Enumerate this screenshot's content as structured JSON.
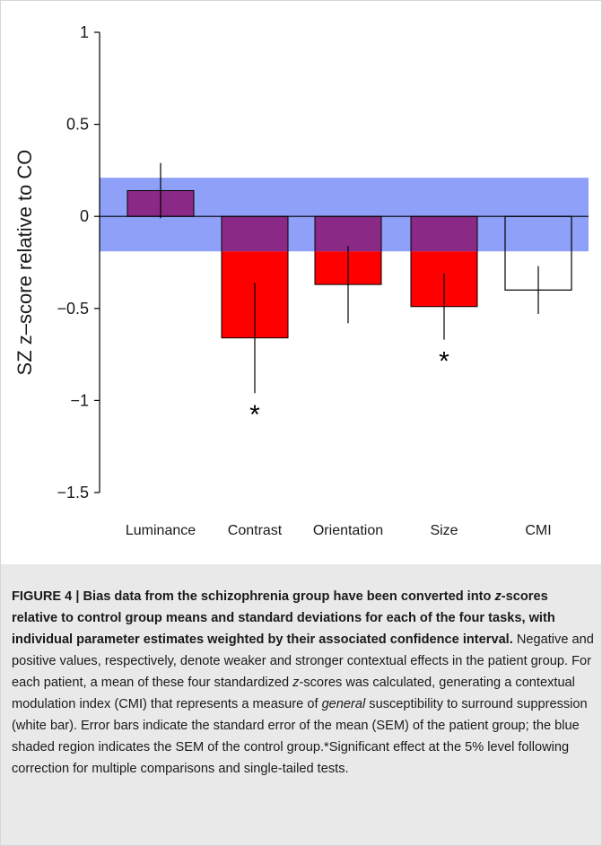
{
  "chart_data": {
    "type": "bar",
    "ylabel": "SZ z–score relative to CO",
    "ylim": [
      -1.5,
      1
    ],
    "yticks": [
      1,
      0.5,
      0,
      -0.5,
      -1,
      -1.5
    ],
    "ytick_labels": [
      "1",
      "0.5",
      "0",
      "−0.5",
      "−1",
      "−1.5"
    ],
    "categories": [
      "Luminance",
      "Contrast",
      "Orientation",
      "Size",
      "CMI"
    ],
    "values": [
      0.14,
      -0.66,
      -0.37,
      -0.49,
      -0.4
    ],
    "error": [
      0.15,
      0.3,
      0.21,
      0.18,
      0.13
    ],
    "significant": [
      false,
      true,
      false,
      true,
      false
    ],
    "significance_marker": "*",
    "control_sem_band": [
      -0.19,
      0.21
    ],
    "colors": {
      "band": "#8fa0f8",
      "bar_fill": "#ff0000",
      "bar_in_band": "#8b2a86",
      "cmi_fill": "#ffffff",
      "outline": "#000000"
    }
  },
  "caption": {
    "figure_label": "FIGURE 4 | ",
    "title": "Bias data from the schizophrenia group have been converted into ",
    "title_italic": "z",
    "title_rest": "-scores relative to control group means and standard deviations for each of the four tasks, with individual parameter estimates weighted by their associated confidence interval.",
    "body_1": " Negative and positive values, respectively, denote weaker and stronger contextual effects in the patient group. For each patient, a mean of these four standardized ",
    "body_italic_1": "z",
    "body_2": "-scores was calculated, generating a contextual modulation index (CMI) that represents a measure of ",
    "body_italic_2": "general",
    "body_3": " susceptibility to surround suppression (white bar). Error bars indicate the standard error of the mean (SEM) of the patient group; the blue shaded region indicates the SEM of the control group.*Significant effect at the 5% level following correction for multiple comparisons and single-tailed tests."
  }
}
